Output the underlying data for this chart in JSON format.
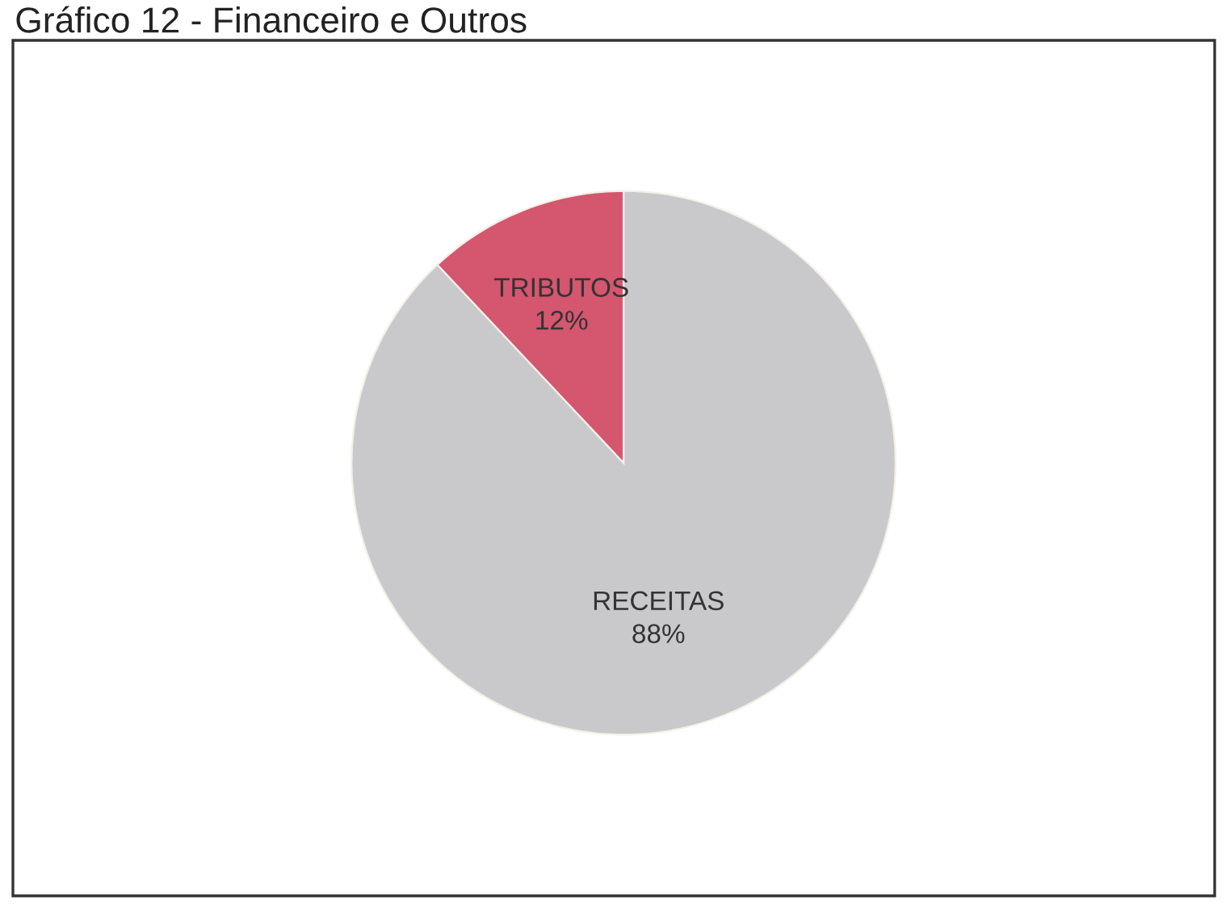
{
  "chart_data": {
    "type": "pie",
    "title": "Gráfico 12 - Financeiro e Outros",
    "categories": [
      "RECEITAS",
      "TRIBUTOS"
    ],
    "values": [
      88,
      12
    ],
    "value_labels": [
      "88%",
      "12%"
    ],
    "colors": [
      "#c9c9cb",
      "#d4566f"
    ],
    "legend": false
  }
}
